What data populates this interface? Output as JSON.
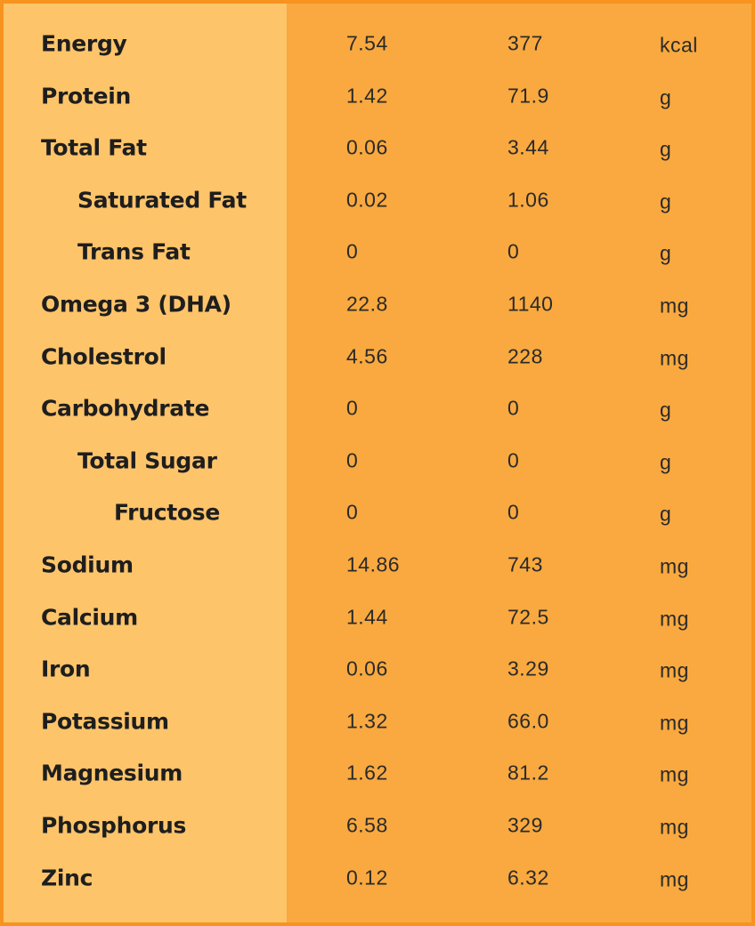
{
  "table": {
    "rows": [
      {
        "label": "Energy",
        "values": [
          "7.54",
          "377"
        ],
        "unit": "kcal"
      },
      {
        "label": "Protein",
        "values": [
          "1.42",
          "71.9"
        ],
        "unit": "g"
      },
      {
        "label": "Total Fat",
        "values": [
          "0.06",
          "3.44"
        ],
        "unit": "g",
        "children": [
          {
            "label": "Saturated Fat",
            "values": [
              "0.02",
              "1.06"
            ],
            "unit": "g"
          },
          {
            "label": "Trans Fat",
            "values": [
              "0",
              "0"
            ],
            "unit": "g"
          }
        ]
      },
      {
        "label": "Omega 3 (DHA)",
        "values": [
          "22.8",
          "1140"
        ],
        "unit": "mg"
      },
      {
        "label": "Cholestrol",
        "values": [
          "4.56",
          "228"
        ],
        "unit": "mg"
      },
      {
        "label": "Carbohydrate",
        "values": [
          "0",
          "0"
        ],
        "unit": "g",
        "children": [
          {
            "label": "Total Sugar",
            "values": [
              "0",
              "0"
            ],
            "unit": "g",
            "children": [
              {
                "label": "Fructose",
                "values": [
                  "0",
                  "0"
                ],
                "unit": "g"
              }
            ]
          }
        ]
      },
      {
        "label": "Sodium",
        "values": [
          "14.86",
          "743"
        ],
        "unit": "mg"
      },
      {
        "label": "Calcium",
        "values": [
          "1.44",
          "72.5"
        ],
        "unit": "mg"
      },
      {
        "label": "Iron",
        "values": [
          "0.06",
          "3.29"
        ],
        "unit": "mg"
      },
      {
        "label": "Potassium",
        "values": [
          "1.32",
          "66.0"
        ],
        "unit": "mg"
      },
      {
        "label": "Magnesium",
        "values": [
          "1.62",
          "81.2"
        ],
        "unit": "mg"
      },
      {
        "label": "Phosphorus",
        "values": [
          "6.58",
          "329"
        ],
        "unit": "mg"
      },
      {
        "label": "Zinc",
        "values": [
          "0.12",
          "6.32"
        ],
        "unit": "mg"
      }
    ]
  }
}
